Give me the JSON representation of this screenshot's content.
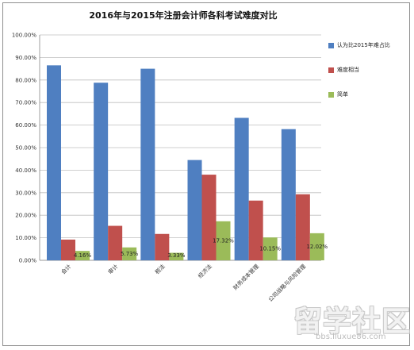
{
  "chart_data": {
    "type": "bar",
    "title": "2016年与2015年注册会计师各科考试难度对比",
    "categories": [
      "会计",
      "审计",
      "税法",
      "经济法",
      "财务成本管理",
      "公司战略与风险管理"
    ],
    "y_ticks": [
      "0.00%",
      "10.00%",
      "20.00%",
      "30.00%",
      "40.00%",
      "50.00%",
      "60.00%",
      "70.00%",
      "80.00%",
      "90.00%",
      "100.00%"
    ],
    "ylim": [
      0,
      100
    ],
    "grid": true,
    "legend_position": "right",
    "series": [
      {
        "name": "认为比2015年难占比",
        "color": "#4f7fc1",
        "values": [
          86.5,
          78.8,
          85.0,
          44.5,
          63.2,
          58.2
        ]
      },
      {
        "name": "难度相当",
        "color": "#c0504d",
        "values": [
          9.2,
          15.3,
          11.7,
          38.0,
          26.5,
          29.3
        ]
      },
      {
        "name": "简单",
        "color": "#9bbb59",
        "values": [
          4.16,
          5.73,
          3.33,
          17.32,
          10.15,
          12.02
        ]
      }
    ],
    "data_labels": [
      "4.16%",
      "5.73%",
      "3.33%",
      "17.32%",
      "10.15%",
      "12.02%"
    ]
  },
  "watermark": {
    "logo_text": "留学社区",
    "url": "bbs.liuxue86.com"
  }
}
